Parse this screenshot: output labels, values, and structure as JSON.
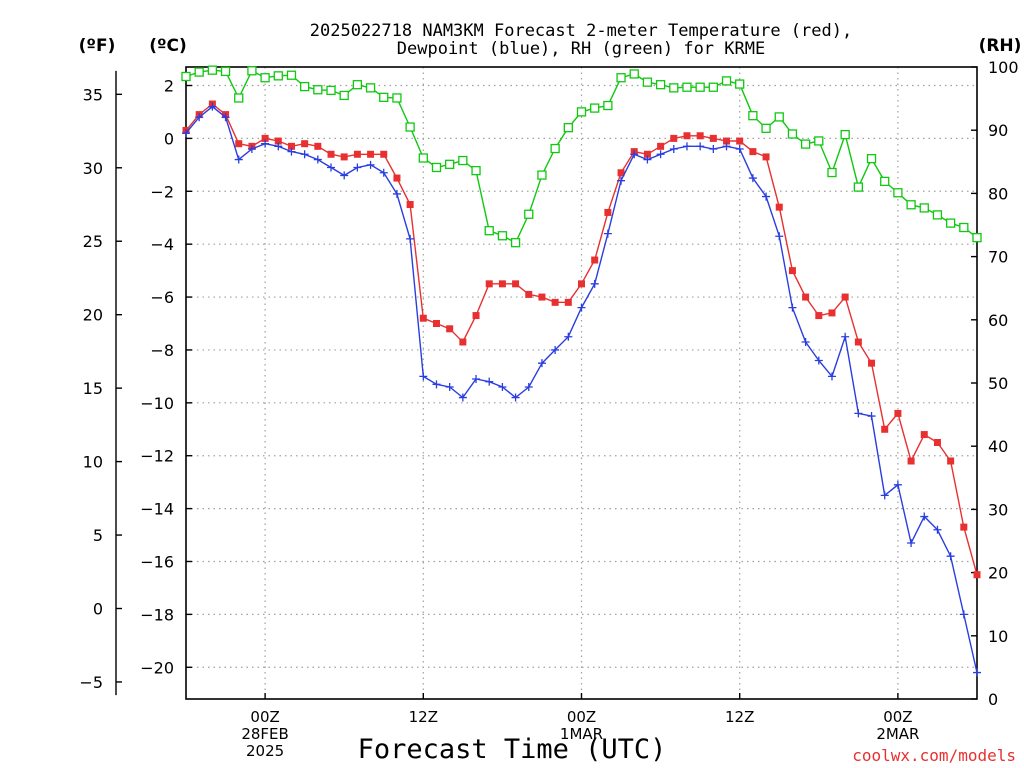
{
  "chart_data": {
    "type": "line",
    "title": [
      "2025022718 NAM3KM Forecast 2-meter Temperature (red),",
      "Dewpoint (blue), RH (green) for KRME"
    ],
    "xlabel": "Forecast Time (UTC)",
    "credit": "coolwx.com/models",
    "units": {
      "left_f": "(ºF)",
      "left_c": "(ºC)",
      "right": "(RH)"
    },
    "x_ticks": [
      {
        "hour": 6,
        "lines": [
          "00Z",
          "28FEB",
          "2025"
        ]
      },
      {
        "hour": 18,
        "lines": [
          "12Z"
        ]
      },
      {
        "hour": 30,
        "lines": [
          "00Z",
          "1MAR"
        ]
      },
      {
        "hour": 42,
        "lines": [
          "12Z"
        ]
      },
      {
        "hour": 54,
        "lines": [
          "00Z",
          "2MAR"
        ]
      }
    ],
    "x_range_hours": [
      0,
      60
    ],
    "c_range": [
      -21.2,
      2.7
    ],
    "c_ticks": [
      2,
      0,
      -2,
      -4,
      -6,
      -8,
      -10,
      -12,
      -14,
      -16,
      -18,
      -20
    ],
    "f_ticks": [
      35,
      30,
      25,
      20,
      15,
      10,
      5,
      0,
      -5
    ],
    "rh_range": [
      0,
      100
    ],
    "rh_ticks": [
      100,
      90,
      80,
      70,
      60,
      50,
      40,
      30,
      20,
      10,
      0
    ],
    "grid": true,
    "colors": {
      "temperature": "#e83030",
      "dewpoint": "#2a3ee0",
      "rh": "#10c810",
      "grid": "#a0a0a0"
    },
    "series": [
      {
        "name": "Temperature",
        "unit": "C",
        "marker": "filled-square",
        "x": [
          0,
          1,
          2,
          3,
          4,
          5,
          6,
          7,
          8,
          9,
          10,
          11,
          12,
          13,
          14,
          15,
          16,
          17,
          18,
          19,
          20,
          21,
          22,
          23,
          24,
          25,
          26,
          27,
          28,
          29,
          30,
          31,
          32,
          33,
          34,
          35,
          36,
          37,
          38,
          39,
          40,
          41,
          42,
          43,
          44,
          45,
          46,
          47,
          48,
          49,
          50,
          51,
          52,
          53,
          54,
          55,
          56,
          57,
          58,
          59,
          60
        ],
        "values": [
          0.3,
          0.9,
          1.3,
          0.9,
          -0.2,
          -0.3,
          0.0,
          -0.1,
          -0.3,
          -0.2,
          -0.3,
          -0.6,
          -0.7,
          -0.6,
          -0.6,
          -0.6,
          -1.5,
          -2.5,
          -6.8,
          -7.0,
          -7.2,
          -7.7,
          -6.7,
          -5.5,
          -5.5,
          -5.5,
          -5.9,
          -6.0,
          -6.2,
          -6.2,
          -5.5,
          -4.6,
          -2.8,
          -1.3,
          -0.5,
          -0.6,
          -0.3,
          0.0,
          0.1,
          0.1,
          0.0,
          -0.1,
          -0.1,
          -0.5,
          -0.7,
          -2.6,
          -5.0,
          -6.0,
          -6.7,
          -6.6,
          -6.0,
          -7.7,
          -8.5,
          -11.0,
          -10.4,
          -12.2,
          -11.2,
          -11.5,
          -12.2,
          -14.7,
          -16.5
        ]
      },
      {
        "name": "Dewpoint",
        "unit": "C",
        "marker": "plus",
        "x": [
          0,
          1,
          2,
          3,
          4,
          5,
          6,
          7,
          8,
          9,
          10,
          11,
          12,
          13,
          14,
          15,
          16,
          17,
          18,
          19,
          20,
          21,
          22,
          23,
          24,
          25,
          26,
          27,
          28,
          29,
          30,
          31,
          32,
          33,
          34,
          35,
          36,
          37,
          38,
          39,
          40,
          41,
          42,
          43,
          44,
          45,
          46,
          47,
          48,
          49,
          50,
          51,
          52,
          53,
          54,
          55,
          56,
          57,
          58,
          59,
          60
        ],
        "values": [
          0.2,
          0.8,
          1.2,
          0.8,
          -0.8,
          -0.4,
          -0.2,
          -0.3,
          -0.5,
          -0.6,
          -0.8,
          -1.1,
          -1.4,
          -1.1,
          -1.0,
          -1.3,
          -2.1,
          -3.8,
          -9.0,
          -9.3,
          -9.4,
          -9.8,
          -9.1,
          -9.2,
          -9.4,
          -9.8,
          -9.4,
          -8.5,
          -8.0,
          -7.5,
          -6.4,
          -5.5,
          -3.6,
          -1.6,
          -0.6,
          -0.8,
          -0.6,
          -0.4,
          -0.3,
          -0.3,
          -0.4,
          -0.3,
          -0.4,
          -1.5,
          -2.2,
          -3.7,
          -6.4,
          -7.7,
          -8.4,
          -9.0,
          -7.5,
          -10.4,
          -10.5,
          -13.5,
          -13.1,
          -15.3,
          -14.3,
          -14.8,
          -15.8,
          -18.0,
          -20.2
        ]
      },
      {
        "name": "RH",
        "unit": "%",
        "marker": "open-square",
        "x": [
          0,
          1,
          2,
          3,
          4,
          5,
          6,
          7,
          8,
          9,
          10,
          11,
          12,
          13,
          14,
          15,
          16,
          17,
          18,
          19,
          20,
          21,
          22,
          23,
          24,
          25,
          26,
          27,
          28,
          29,
          30,
          31,
          32,
          33,
          34,
          35,
          36,
          37,
          38,
          39,
          40,
          41,
          42,
          43,
          44,
          45,
          46,
          47,
          48,
          49,
          50,
          51,
          52,
          53,
          54,
          55,
          56,
          57,
          58,
          59,
          60
        ],
        "values": [
          98.5,
          99.2,
          99.5,
          99.3,
          95.1,
          99.4,
          98.3,
          98.6,
          98.7,
          96.9,
          96.4,
          96.3,
          95.5,
          97.2,
          96.7,
          95.2,
          95.1,
          90.5,
          85.6,
          84.1,
          84.6,
          85.2,
          83.6,
          74.1,
          73.3,
          72.2,
          76.7,
          82.9,
          87.1,
          90.4,
          92.9,
          93.5,
          93.9,
          98.3,
          98.9,
          97.6,
          97.2,
          96.7,
          96.8,
          96.8,
          96.8,
          97.8,
          97.3,
          92.3,
          90.3,
          92.1,
          89.4,
          87.8,
          88.3,
          83.3,
          89.3,
          81.0,
          85.5,
          81.9,
          80.1,
          78.2,
          77.7,
          76.6,
          75.3,
          74.6,
          73.0
        ]
      }
    ]
  }
}
